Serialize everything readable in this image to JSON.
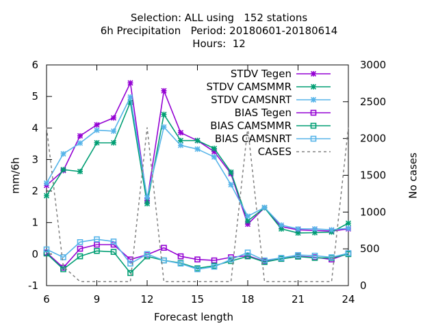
{
  "chart_data": {
    "type": "line",
    "title_lines": [
      "Selection: ALL using   152 stations",
      "6h Precipitation   Period: 20180601-20180614",
      "Hours:  12"
    ],
    "xlabel": "Forecast length",
    "ylabel": "mm/6h",
    "y2label": "No cases",
    "xlim": [
      6,
      24
    ],
    "ylim": [
      -1,
      6
    ],
    "y2lim": [
      0,
      3000
    ],
    "xticks": [
      6,
      9,
      12,
      15,
      18,
      21,
      24
    ],
    "yticks": [
      -1,
      0,
      1,
      2,
      3,
      4,
      5,
      6
    ],
    "y2ticks": [
      0,
      500,
      1000,
      1500,
      2000,
      2500,
      3000
    ],
    "grid": false,
    "legend_position": "top-right",
    "x": [
      6,
      7,
      8,
      9,
      10,
      11,
      12,
      13,
      14,
      15,
      16,
      17,
      18,
      19,
      20,
      21,
      22,
      23,
      24
    ],
    "series": [
      {
        "name": "STDV Tegen",
        "axis": "y",
        "color": "#9400d3",
        "marker": "star",
        "values": [
          2.18,
          2.65,
          3.75,
          4.1,
          4.32,
          5.43,
          1.7,
          5.18,
          3.85,
          3.6,
          3.25,
          2.55,
          0.95,
          1.47,
          0.87,
          0.77,
          0.75,
          0.73,
          0.8
        ]
      },
      {
        "name": "STDV CAMSMMR",
        "axis": "y",
        "color": "#009e73",
        "marker": "star",
        "values": [
          1.85,
          2.68,
          2.62,
          3.53,
          3.53,
          4.82,
          1.6,
          4.43,
          3.6,
          3.6,
          3.35,
          2.6,
          1.05,
          1.47,
          0.8,
          0.67,
          0.68,
          0.7,
          0.98
        ]
      },
      {
        "name": "STDV CAMSNRT",
        "axis": "y",
        "color": "#56b4e9",
        "marker": "star",
        "values": [
          2.25,
          3.18,
          3.52,
          3.93,
          3.9,
          4.98,
          1.8,
          4.03,
          3.45,
          3.33,
          3.08,
          2.2,
          1.2,
          1.48,
          0.92,
          0.8,
          0.8,
          0.77,
          0.82
        ]
      },
      {
        "name": "BIAS Tegen",
        "axis": "y",
        "color": "#9400d3",
        "marker": "square",
        "values": [
          0.05,
          -0.43,
          0.17,
          0.3,
          0.3,
          -0.17,
          -0.02,
          0.2,
          -0.07,
          -0.17,
          -0.2,
          -0.1,
          -0.05,
          -0.23,
          -0.15,
          -0.07,
          -0.1,
          -0.17,
          0.02
        ]
      },
      {
        "name": "BIAS CAMSMMR",
        "axis": "y",
        "color": "#009e73",
        "marker": "square",
        "values": [
          0.02,
          -0.48,
          -0.07,
          0.1,
          0.07,
          -0.6,
          -0.07,
          -0.2,
          -0.28,
          -0.45,
          -0.37,
          -0.22,
          -0.07,
          -0.25,
          -0.15,
          -0.08,
          -0.12,
          -0.12,
          0.0
        ]
      },
      {
        "name": "BIAS CAMSNRT",
        "axis": "y",
        "color": "#56b4e9",
        "marker": "square",
        "values": [
          0.15,
          -0.1,
          0.38,
          0.47,
          0.4,
          -0.3,
          0.0,
          -0.2,
          -0.3,
          -0.48,
          -0.4,
          -0.17,
          0.05,
          -0.2,
          -0.12,
          -0.03,
          -0.05,
          -0.1,
          0.03
        ]
      },
      {
        "name": "CASES",
        "axis": "y2",
        "color": "#808080",
        "marker": "none",
        "dash": true,
        "values": [
          2150,
          260,
          55,
          55,
          55,
          55,
          2150,
          55,
          55,
          55,
          55,
          55,
          2150,
          55,
          55,
          55,
          55,
          55,
          2150
        ]
      }
    ]
  }
}
